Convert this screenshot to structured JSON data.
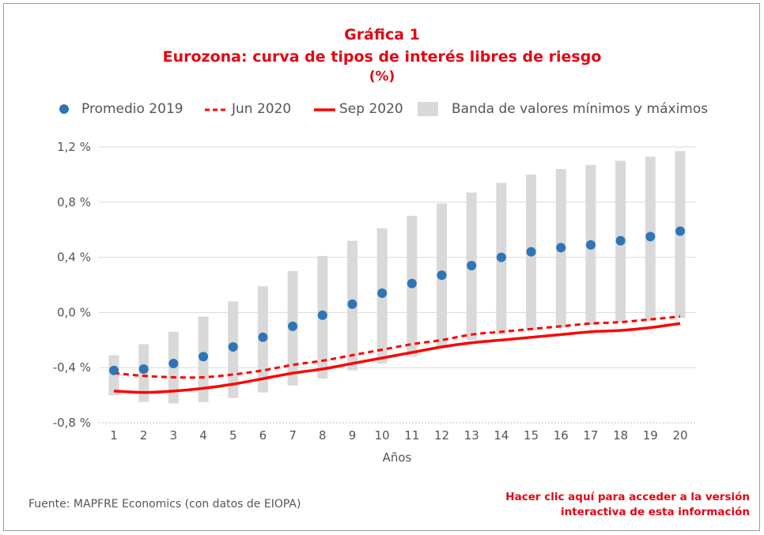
{
  "titles": {
    "line1": "Gráfica 1",
    "line2": "Eurozona: curva de tipos de interés libres de riesgo",
    "line3": "(%)"
  },
  "legend": {
    "promedio": "Promedio 2019",
    "jun": "Jun 2020",
    "sep": "Sep 2020",
    "banda": "Banda de valores mínimos y máximos"
  },
  "source": "Fuente: MAPFRE Economics (con datos de EIOPA)",
  "link": {
    "line1": "Hacer clic aquí para acceder a la versión",
    "line2": "interactiva de esta información"
  },
  "chart_data": {
    "type": "line",
    "xlabel": "Años",
    "ylabel": "",
    "x": [
      1,
      2,
      3,
      4,
      5,
      6,
      7,
      8,
      9,
      10,
      11,
      12,
      13,
      14,
      15,
      16,
      17,
      18,
      19,
      20
    ],
    "ylim": [
      -0.8,
      1.2
    ],
    "yticks": [
      -0.8,
      -0.4,
      0.0,
      0.4,
      0.8,
      1.2
    ],
    "ytick_labels": [
      "-0,8 %",
      "-0,4 %",
      "0,0 %",
      "0,4 %",
      "0,8 %",
      "1,2 %"
    ],
    "grid": "horizontal",
    "legend_position": "top",
    "colors": {
      "promedio": "#2e75b6",
      "lines": "#ff0000",
      "band": "#d9d9d9"
    },
    "band": {
      "name": "Banda de valores mínimos y máximos",
      "min": [
        -0.6,
        -0.65,
        -0.66,
        -0.65,
        -0.62,
        -0.58,
        -0.53,
        -0.48,
        -0.42,
        -0.37,
        -0.32,
        -0.26,
        -0.2,
        -0.16,
        -0.13,
        -0.11,
        -0.09,
        -0.07,
        -0.06,
        -0.04
      ],
      "max": [
        -0.31,
        -0.23,
        -0.14,
        -0.03,
        0.08,
        0.19,
        0.3,
        0.41,
        0.52,
        0.61,
        0.7,
        0.79,
        0.87,
        0.94,
        1.0,
        1.04,
        1.07,
        1.1,
        1.13,
        1.17
      ]
    },
    "series": [
      {
        "name": "Promedio 2019",
        "style": "dots",
        "values": [
          -0.42,
          -0.41,
          -0.37,
          -0.32,
          -0.25,
          -0.18,
          -0.1,
          -0.02,
          0.06,
          0.14,
          0.21,
          0.27,
          0.34,
          0.4,
          0.44,
          0.47,
          0.49,
          0.52,
          0.55,
          0.59
        ]
      },
      {
        "name": "Jun 2020",
        "style": "dashed",
        "values": [
          -0.44,
          -0.46,
          -0.47,
          -0.47,
          -0.45,
          -0.42,
          -0.38,
          -0.35,
          -0.31,
          -0.27,
          -0.23,
          -0.2,
          -0.16,
          -0.14,
          -0.12,
          -0.1,
          -0.08,
          -0.07,
          -0.05,
          -0.03
        ]
      },
      {
        "name": "Sep 2020",
        "style": "solid",
        "values": [
          -0.57,
          -0.58,
          -0.57,
          -0.55,
          -0.52,
          -0.48,
          -0.44,
          -0.41,
          -0.37,
          -0.33,
          -0.29,
          -0.25,
          -0.22,
          -0.2,
          -0.18,
          -0.16,
          -0.14,
          -0.13,
          -0.11,
          -0.08
        ]
      }
    ]
  }
}
